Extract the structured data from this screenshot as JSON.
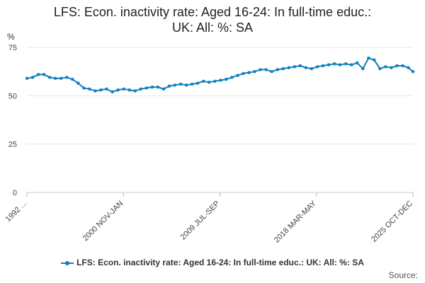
{
  "chart_data": {
    "type": "line",
    "title_line1": "LFS: Econ. inactivity rate: Aged 16-24: In full-time educ.:",
    "title_line2": "UK: All: %: SA",
    "ylabel": "%",
    "ylim": [
      0,
      75
    ],
    "yticks": [
      "0",
      "25",
      "50",
      "75"
    ],
    "xticks": [
      "1992 ...",
      "2000 NOV-JAN",
      "2009 JUL-SEP",
      "2018 MAR-MAY",
      "2025 OCT-DEC"
    ],
    "grid": true,
    "legend_position": "bottom",
    "series": [
      {
        "name": "LFS: Econ. inactivity rate: Aged 16-24: In full-time educ.: UK: All: %: SA",
        "color": "#0f7fbf",
        "x": [
          1992.0,
          1992.5,
          1993.0,
          1993.5,
          1994.0,
          1994.5,
          1995.0,
          1995.5,
          1996.0,
          1996.5,
          1997.0,
          1997.5,
          1998.0,
          1998.5,
          1999.0,
          1999.5,
          2000.0,
          2000.5,
          2001.0,
          2001.5,
          2002.0,
          2002.5,
          2003.0,
          2003.5,
          2004.0,
          2004.5,
          2005.0,
          2005.5,
          2006.0,
          2006.5,
          2007.0,
          2007.5,
          2008.0,
          2008.5,
          2009.0,
          2009.5,
          2010.0,
          2010.5,
          2011.0,
          2011.5,
          2012.0,
          2012.5,
          2013.0,
          2013.5,
          2014.0,
          2014.5,
          2015.0,
          2015.5,
          2016.0,
          2016.5,
          2017.0,
          2017.5,
          2018.0,
          2018.5,
          2019.0,
          2019.5,
          2020.0,
          2020.5,
          2021.0,
          2021.5,
          2022.0,
          2022.5,
          2023.0,
          2023.5,
          2024.0,
          2024.5,
          2025.0,
          2025.5,
          2025.9
        ],
        "values": [
          59.0,
          59.5,
          61.0,
          61.0,
          59.5,
          59.0,
          59.0,
          59.5,
          58.5,
          56.5,
          54.0,
          53.5,
          52.5,
          53.0,
          53.5,
          52.0,
          53.0,
          53.5,
          53.0,
          52.5,
          53.5,
          54.0,
          54.5,
          54.5,
          53.5,
          55.0,
          55.5,
          56.0,
          55.5,
          56.0,
          56.5,
          57.5,
          57.0,
          57.5,
          58.0,
          58.5,
          59.5,
          60.5,
          61.5,
          62.0,
          62.5,
          63.5,
          63.5,
          62.5,
          63.5,
          64.0,
          64.5,
          65.0,
          65.5,
          64.5,
          64.0,
          65.0,
          65.5,
          66.0,
          66.5,
          66.0,
          66.5,
          66.0,
          67.0,
          64.0,
          69.5,
          68.5,
          64.0,
          65.0,
          64.5,
          65.5,
          65.5,
          64.5,
          62.5
        ]
      }
    ]
  },
  "source_label": "Source:"
}
